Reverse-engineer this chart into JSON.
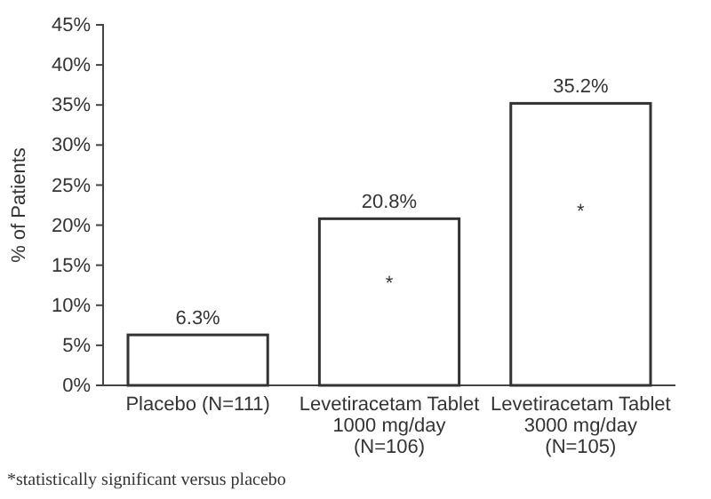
{
  "chart_data": {
    "type": "bar",
    "ylabel": "% of Patients",
    "categories": [
      "Placebo (N=111)",
      "Levetiracetam Tablet\n1000 mg/day\n(N=106)",
      "Levetiracetam Tablet\n3000 mg/day\n(N=105)"
    ],
    "values": [
      6.3,
      20.8,
      35.2
    ],
    "color": "#ffffff",
    "value_labels": [
      "6.3%",
      "20.8%",
      "35.2%"
    ],
    "ylim": [
      0,
      45
    ],
    "yticks": [
      {
        "value": 0,
        "label": "0%"
      },
      {
        "value": 5,
        "label": "5%"
      },
      {
        "value": 10,
        "label": "10%"
      },
      {
        "value": 15,
        "label": "15%"
      },
      {
        "value": 20,
        "label": "20%"
      },
      {
        "value": 25,
        "label": "25%"
      },
      {
        "value": 30,
        "label": "30%"
      },
      {
        "value": 35,
        "label": "35%"
      },
      {
        "value": 40,
        "label": "40%"
      },
      {
        "value": 45,
        "label": "45%"
      }
    ],
    "annotations": [
      "*",
      "*",
      "*statistically significant versus placebo"
    ]
  }
}
